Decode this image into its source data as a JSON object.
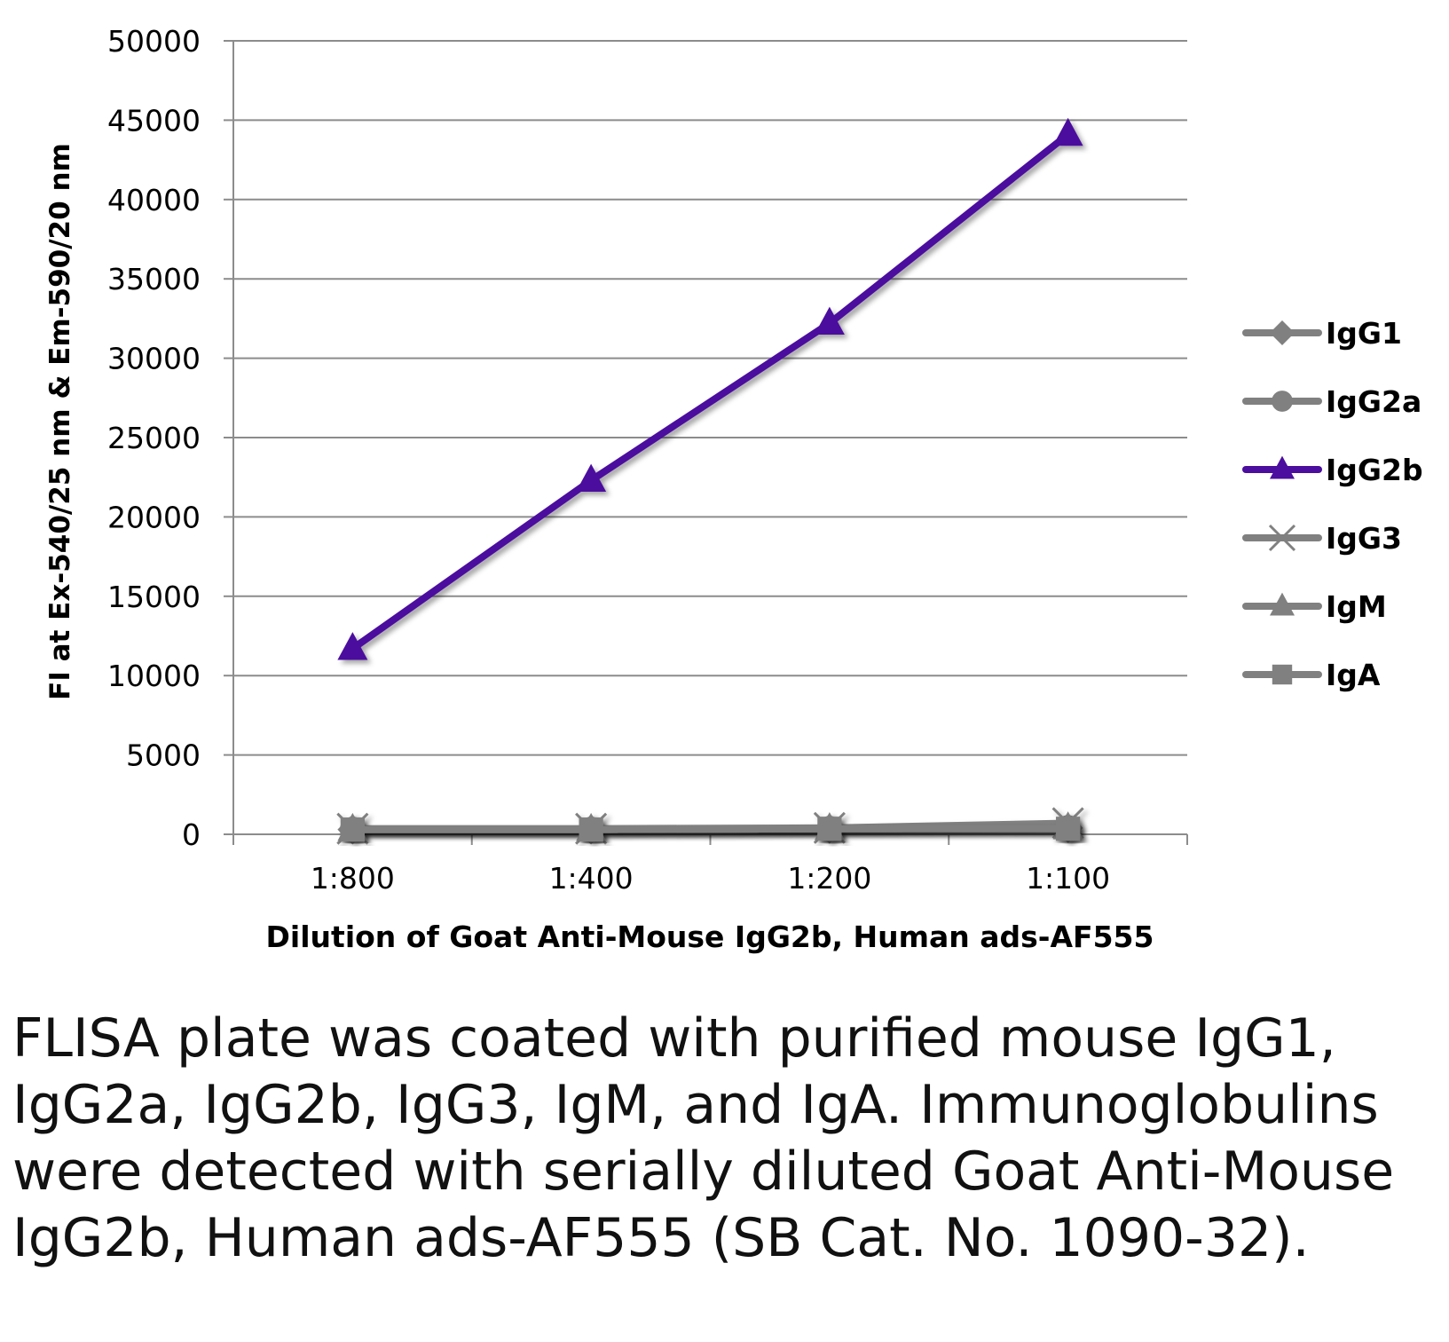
{
  "chart_data": {
    "type": "line",
    "title": "",
    "xlabel": "Dilution of Goat Anti-Mouse IgG2b, Human ads-AF555",
    "ylabel": "FI at Ex-540/25 nm & Em-590/20 nm",
    "categories": [
      "1:800",
      "1:400",
      "1:200",
      "1:100"
    ],
    "ylim": [
      0,
      50000
    ],
    "yticks": [
      "0",
      "5000",
      "10000",
      "15000",
      "20000",
      "25000",
      "30000",
      "35000",
      "40000",
      "45000",
      "50000"
    ],
    "grid": true,
    "legend_position": "right",
    "series": [
      {
        "name": "IgG1",
        "values": [
          300,
          300,
          350,
          400
        ],
        "color": "#808080",
        "marker": "diamond"
      },
      {
        "name": "IgG2a",
        "values": [
          300,
          300,
          350,
          400
        ],
        "color": "#808080",
        "marker": "circle"
      },
      {
        "name": "IgG2b",
        "values": [
          11700,
          22300,
          32200,
          44100
        ],
        "color": "#4B0E9E",
        "marker": "triangle"
      },
      {
        "name": "IgG3",
        "values": [
          350,
          350,
          400,
          700
        ],
        "color": "#808080",
        "marker": "x"
      },
      {
        "name": "IgM",
        "values": [
          300,
          300,
          350,
          400
        ],
        "color": "#808080",
        "marker": "triangle"
      },
      {
        "name": "IgA",
        "values": [
          300,
          300,
          350,
          350
        ],
        "color": "#808080",
        "marker": "square"
      }
    ]
  },
  "caption": "FLISA plate was coated with purified mouse IgG1, IgG2a, IgG2b, IgG3, IgM, and IgA. Immunoglobulins were detected with serially diluted Goat Anti-Mouse IgG2b, Human ads-AF555 (SB Cat. No. 1090-32)."
}
